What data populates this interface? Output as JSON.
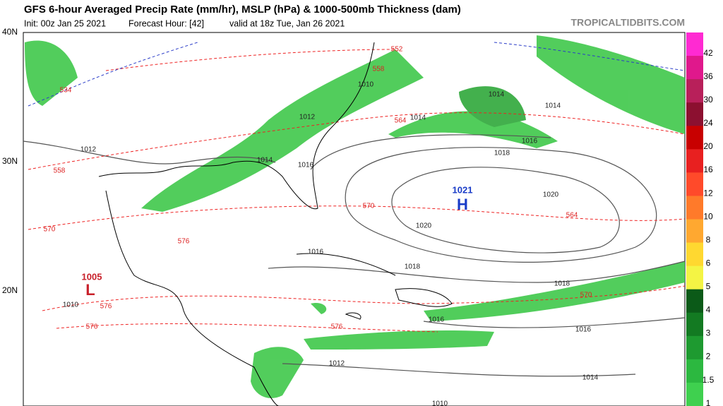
{
  "header": {
    "title": "GFS 6-hour Averaged Precip Rate (mm/hr), MSLP (hPa) & 1000-500mb Thickness (dam)",
    "init": "Init: 00z Jan 25 2021",
    "forecast": "Forecast Hour: [42]",
    "valid": "valid at 18z Tue, Jan 26 2021",
    "site": "TROPICALTIDBITS.COM"
  },
  "lat_labels": [
    "40N",
    "30N",
    "20N"
  ],
  "pressure_centers": [
    {
      "value": "1021",
      "letter": "H"
    },
    {
      "value": "1005",
      "letter": "L"
    }
  ],
  "isobar_labels": [
    "1012",
    "1012",
    "1014",
    "1016",
    "1014",
    "1014",
    "1014",
    "1016",
    "1018",
    "1020",
    "1020",
    "1016",
    "1018",
    "1018",
    "1016",
    "1016",
    "1012",
    "1014",
    "1010",
    "1010",
    "1010"
  ],
  "thickness_labels": [
    "552",
    "558",
    "534",
    "558",
    "564",
    "570",
    "564",
    "570",
    "576",
    "570",
    "576",
    "576",
    "576"
  ],
  "colorbar": [
    "42",
    "36",
    "30",
    "24",
    "20",
    "16",
    "12",
    "10",
    "8",
    "6",
    "5",
    "4",
    "3",
    "2",
    "1.5",
    "1"
  ]
}
